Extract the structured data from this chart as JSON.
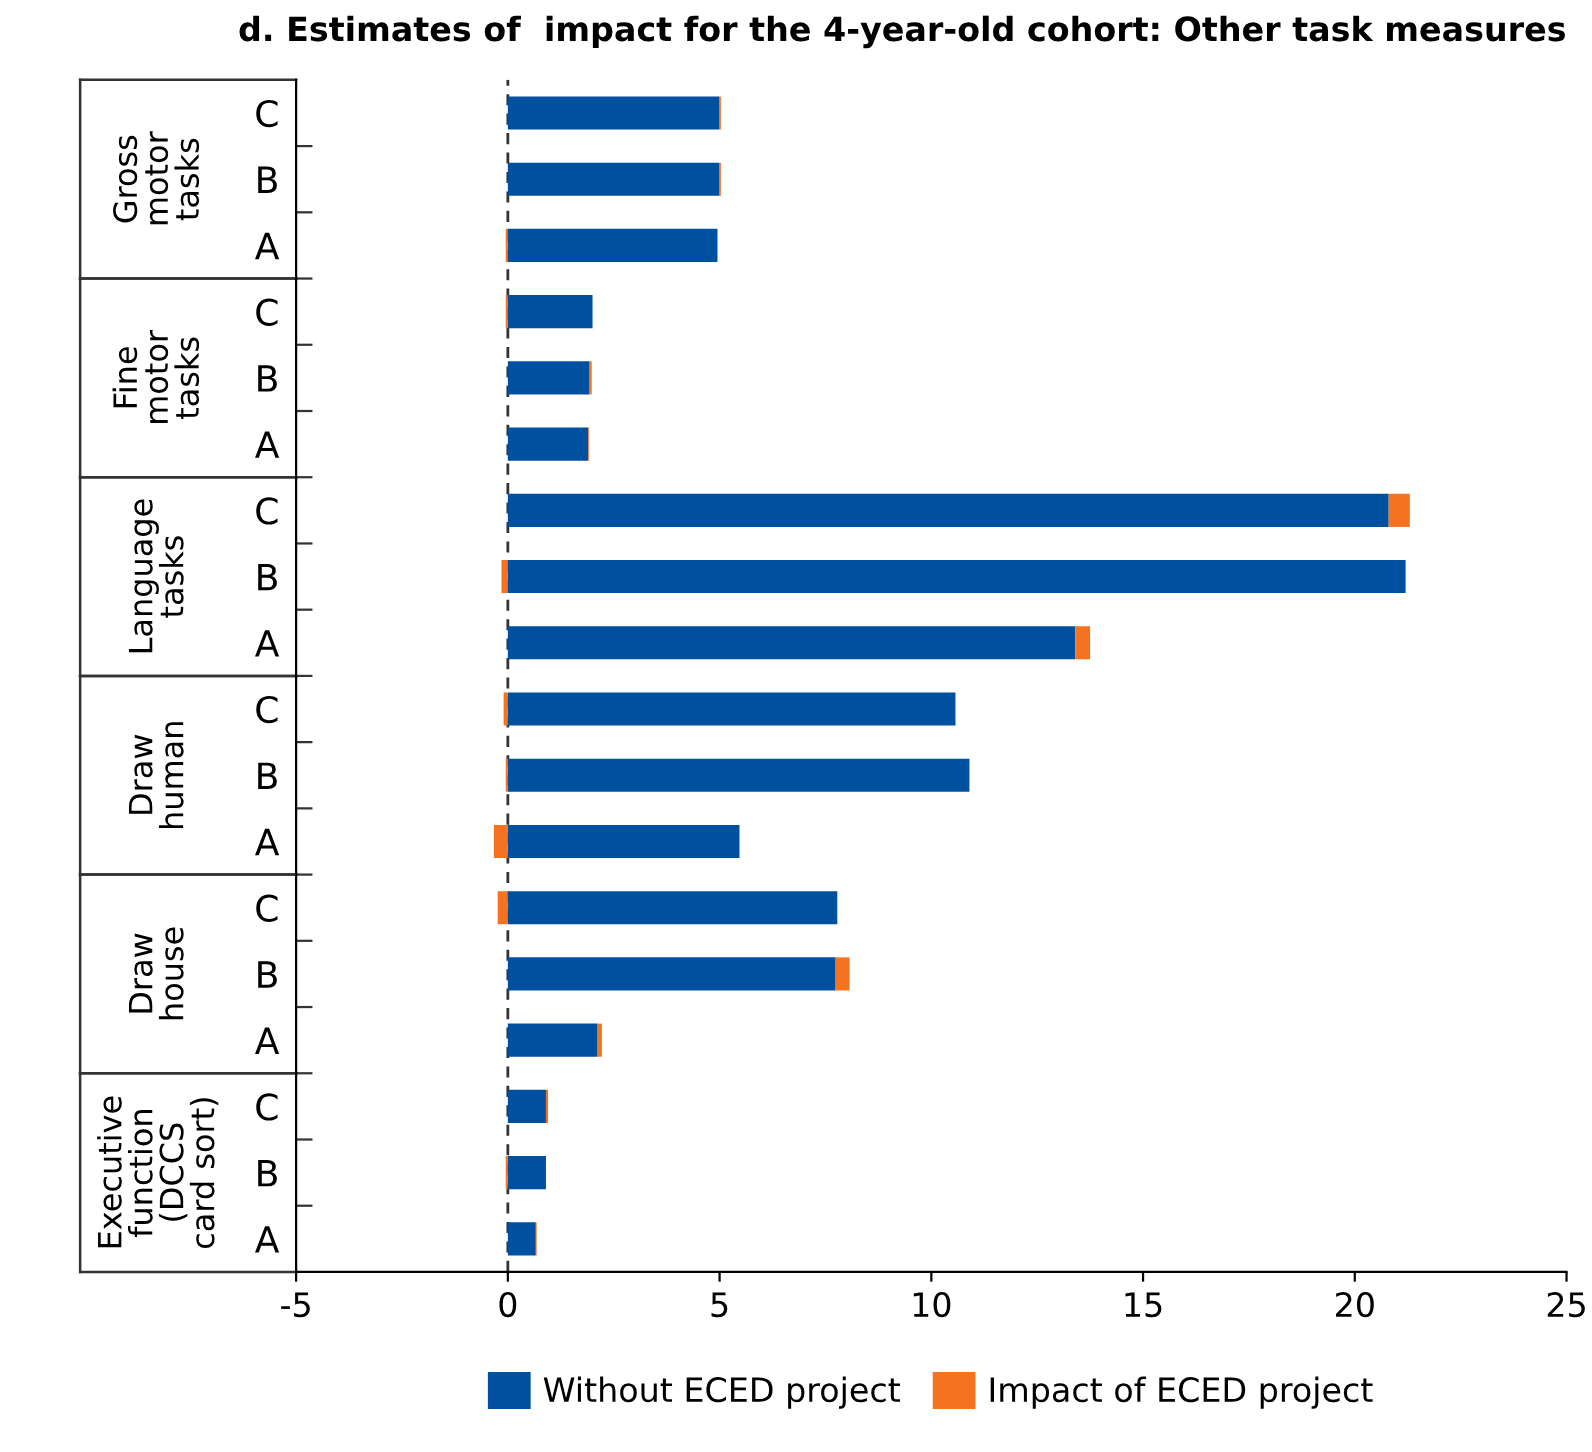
{
  "chart_data": {
    "type": "bar",
    "orientation": "horizontal",
    "stacked": true,
    "title": "d. Estimates of  impact for the 4-year-old cohort: Other task measures",
    "categories": [
      "C",
      "B",
      "A",
      "C",
      "B",
      "A",
      "C",
      "B",
      "A",
      "C",
      "B",
      "A",
      "C",
      "B",
      "A",
      "C",
      "B",
      "A"
    ],
    "series": [
      {
        "name": "Without ECED project",
        "color": "#0050a0",
        "values": [
          5.0,
          5.0,
          4.95,
          2.0,
          1.93,
          1.9,
          20.8,
          21.2,
          13.4,
          10.57,
          10.9,
          5.47,
          7.78,
          7.74,
          2.12,
          0.9,
          0.9,
          0.66
        ]
      },
      {
        "name": "Impact of ECED project",
        "color": "#f47321",
        "values": [
          0.03,
          0.03,
          -0.05,
          -0.05,
          0.05,
          0.02,
          0.5,
          -0.15,
          0.35,
          -0.1,
          -0.05,
          -0.33,
          -0.24,
          0.33,
          0.1,
          0.05,
          -0.05,
          0.02
        ]
      }
    ],
    "annotations": [
      "Gross\nmotor\ntasks",
      "Fine\nmotor\ntasks",
      "Language\ntasks",
      "Draw\nhuman",
      "Draw\nhouse",
      "Executive\nfunction\n(DCCS\ncard sort)"
    ],
    "xlim": [
      -5,
      25
    ],
    "xticks": [
      -5,
      0,
      5,
      10,
      15,
      20,
      25
    ],
    "ref_lines": [
      {
        "axis": "x",
        "value": 0,
        "color": "#333333",
        "line_style": "dashed"
      }
    ],
    "grid": false,
    "legend": "bottom"
  }
}
